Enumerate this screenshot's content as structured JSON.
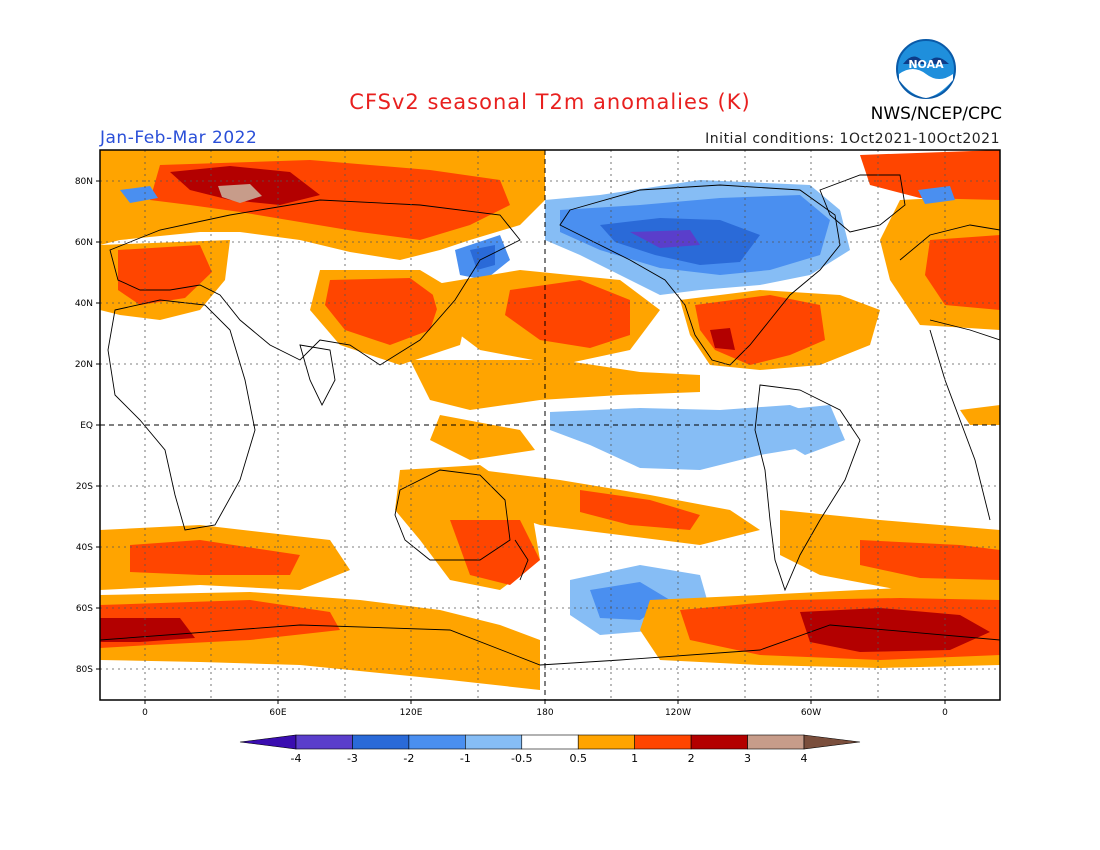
{
  "title": "CFSv2 seasonal T2m anomalies (K)",
  "season": "Jan-Feb-Mar 2022",
  "initial_conditions": "Initial conditions: 1Oct2021-10Oct2021",
  "agency": "NWS/NCEP/CPC",
  "logo_text": "NOAA",
  "lat_labels": [
    "80N",
    "60N",
    "40N",
    "20N",
    "EQ",
    "20S",
    "40S",
    "60S",
    "80S"
  ],
  "lon_labels": [
    "0",
    "60E",
    "120E",
    "180",
    "120W",
    "60W",
    "0"
  ],
  "colorbar": {
    "ticks": [
      "-4",
      "-3",
      "-2",
      "-1",
      "-0.5",
      "0.5",
      "1",
      "2",
      "3",
      "4"
    ],
    "colors": [
      "#3a0db0",
      "#5a3ecb",
      "#2a6ad8",
      "#4a8ff0",
      "#86bdf5",
      "#ffffff",
      "#ffa400",
      "#ff4500",
      "#b30000",
      "#c79c8a",
      "#7a4e3c"
    ]
  }
}
